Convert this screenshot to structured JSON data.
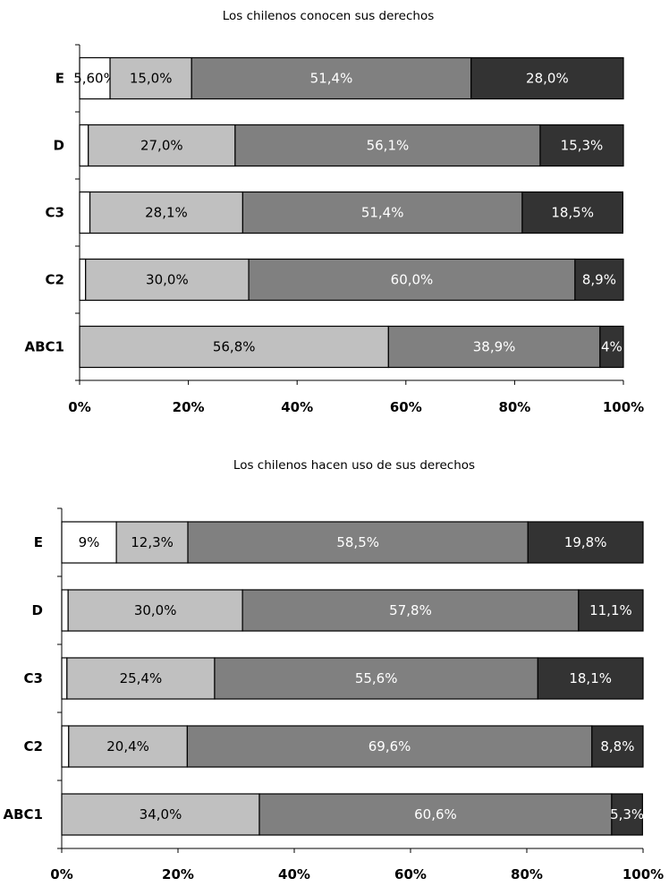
{
  "chart_data": [
    {
      "type": "bar",
      "orientation": "horizontal",
      "stacked": true,
      "title": "Los chilenos conocen sus derechos",
      "categories": [
        "E",
        "D",
        "C3",
        "C2",
        "ABC1"
      ],
      "xlim": [
        0,
        100
      ],
      "xticks": [
        "0%",
        "20%",
        "40%",
        "60%",
        "80%",
        "100%"
      ],
      "series": [
        {
          "color": "#ffffff",
          "text_color": "#000000",
          "values": [
            5.6,
            1.6,
            1.9,
            1.1,
            0
          ],
          "labels": [
            "5,60%",
            "",
            "",
            "",
            ""
          ]
        },
        {
          "color": "#c0c0c0",
          "text_color": "#000000",
          "values": [
            15.0,
            27.0,
            28.1,
            30.0,
            56.8
          ],
          "labels": [
            "15,0%",
            "27,0%",
            "28,1%",
            "30,0%",
            "56,8%"
          ]
        },
        {
          "color": "#808080",
          "text_color": "#ffffff",
          "values": [
            51.4,
            56.1,
            51.4,
            60.0,
            38.9
          ],
          "labels": [
            "51,4%",
            "56,1%",
            "51,4%",
            "60,0%",
            "38,9%"
          ]
        },
        {
          "color": "#333333",
          "text_color": "#ffffff",
          "values": [
            28.0,
            15.3,
            18.5,
            8.9,
            4.3
          ],
          "labels": [
            "28,0%",
            "15,3%",
            "18,5%",
            "8,9%",
            "4%"
          ]
        }
      ]
    },
    {
      "type": "bar",
      "orientation": "horizontal",
      "stacked": true,
      "title": "Los chilenos hacen uso de sus derechos",
      "categories": [
        "E",
        "D",
        "C3",
        "C2",
        "ABC1"
      ],
      "xlim": [
        0,
        100
      ],
      "xticks": [
        "0%",
        "20%",
        "40%",
        "60%",
        "80%",
        "100%"
      ],
      "series": [
        {
          "color": "#ffffff",
          "text_color": "#000000",
          "values": [
            9.4,
            1.1,
            0.9,
            1.2,
            0
          ],
          "labels": [
            "9%",
            "",
            "",
            "",
            ""
          ]
        },
        {
          "color": "#c0c0c0",
          "text_color": "#000000",
          "values": [
            12.3,
            30.0,
            25.4,
            20.4,
            34.0
          ],
          "labels": [
            "12,3%",
            "30,0%",
            "25,4%",
            "20,4%",
            "34,0%"
          ]
        },
        {
          "color": "#808080",
          "text_color": "#ffffff",
          "values": [
            58.5,
            57.8,
            55.6,
            69.6,
            60.6
          ],
          "labels": [
            "58,5%",
            "57,8%",
            "55,6%",
            "69,6%",
            "60,6%"
          ]
        },
        {
          "color": "#333333",
          "text_color": "#ffffff",
          "values": [
            19.8,
            11.1,
            18.1,
            8.8,
            5.3
          ],
          "labels": [
            "19,8%",
            "11,1%",
            "18,1%",
            "8,8%",
            "5,3%"
          ]
        }
      ]
    }
  ]
}
